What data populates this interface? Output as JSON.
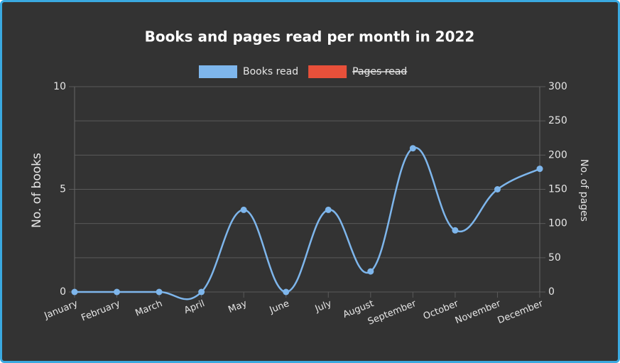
{
  "chart_data": {
    "type": "line",
    "title": "Books and pages read per month in 2022",
    "categories": [
      "January",
      "February",
      "March",
      "April",
      "May",
      "June",
      "July",
      "August",
      "September",
      "October",
      "November",
      "December"
    ],
    "series": [
      {
        "name": "Books read",
        "color": "#7eb6ec",
        "values": [
          0,
          0,
          0,
          0,
          4,
          0,
          4,
          1,
          7,
          3,
          5,
          6
        ]
      },
      {
        "name": "Pages read",
        "color": "#e8503a",
        "axis": "y2",
        "hidden": true
      }
    ],
    "ylabel": "No. of books",
    "y2label": "No. of pages",
    "ylim": [
      0,
      10
    ],
    "yticks": [
      0,
      5,
      10
    ],
    "y2lim": [
      0,
      300
    ],
    "y2ticks": [
      0,
      50,
      100,
      150,
      200,
      250,
      300
    ],
    "grid": true,
    "legend": "top"
  }
}
